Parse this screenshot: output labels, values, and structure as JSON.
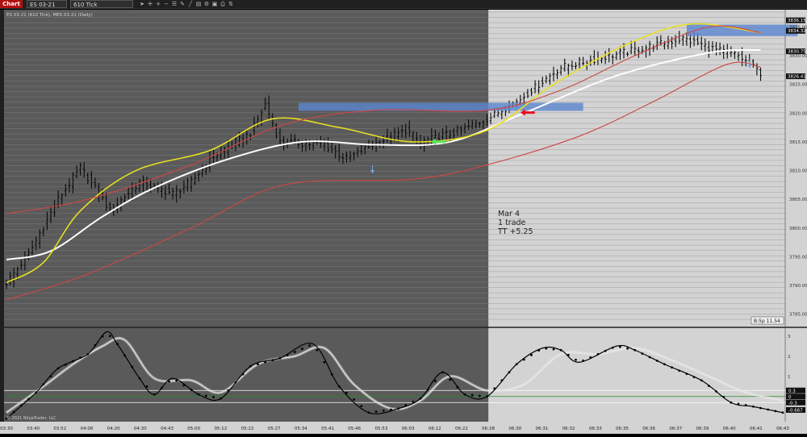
{
  "toolbar": {
    "badge": "Chart",
    "instrument": "ES 03-21",
    "period": "610 Tick",
    "tools": [
      "pointer-icon",
      "crosshair-icon",
      "zoom-in-icon",
      "zoom-out-icon",
      "properties-icon",
      "draw-icon",
      "draw-line-icon",
      "template-icon",
      "strategy-icon",
      "data-box-icon",
      "print-icon",
      "chart-trader-icon"
    ]
  },
  "chart_data": [
    {
      "type": "candlestick",
      "title": "ES 03-21 (610 Tick), MES 03-21 (Daily)",
      "session_split_time": "06:28",
      "ylim": [
        3783,
        3838
      ],
      "yticks": [
        "3785.00",
        "3790.00",
        "3795.00",
        "3800.00",
        "3805.00",
        "3810.00",
        "3815.00",
        "3820.00",
        "3825.00",
        "3830.00",
        "3835.00"
      ],
      "xticks": [
        "03:30",
        "03:40",
        "03:52",
        "04:06",
        "04:20",
        "04:30",
        "04:43",
        "05:00",
        "05:12",
        "05:22",
        "05:27",
        "05:34",
        "05:41",
        "05:46",
        "05:53",
        "06:03",
        "06:12",
        "06:22",
        "06:28",
        "06:30",
        "06:31",
        "06:32",
        "06:33",
        "06:35",
        "06:36",
        "06:37",
        "06:39",
        "06:40",
        "06:41",
        "06:43"
      ],
      "price_path": [
        [
          0,
          3790.5
        ],
        [
          6,
          3795.5
        ],
        [
          14,
          3805
        ],
        [
          20,
          3810.5
        ],
        [
          25,
          3806
        ],
        [
          28,
          3803
        ],
        [
          36,
          3808
        ],
        [
          45,
          3806
        ],
        [
          50,
          3808
        ],
        [
          56,
          3812.5
        ],
        [
          66,
          3816.5
        ],
        [
          70,
          3821.5
        ],
        [
          74,
          3815
        ],
        [
          86,
          3814.5
        ],
        [
          92,
          3812
        ],
        [
          99,
          3814.5
        ],
        [
          108,
          3817
        ],
        [
          112,
          3815
        ],
        [
          123,
          3817
        ],
        [
          130,
          3819
        ],
        [
          138,
          3822
        ],
        [
          150,
          3828
        ],
        [
          170,
          3831
        ],
        [
          183,
          3833
        ],
        [
          192,
          3831
        ],
        [
          198,
          3830
        ],
        [
          204,
          3827
        ]
      ],
      "series": [
        {
          "name": "",
          "color": "#ffffff",
          "values": [
            [
              0,
              3794.5
            ],
            [
              12,
              3796
            ],
            [
              26,
              3802
            ],
            [
              40,
              3807
            ],
            [
              60,
              3812
            ],
            [
              80,
              3815
            ],
            [
              100,
              3814.5
            ],
            [
              120,
              3815
            ],
            [
              140,
              3820
            ],
            [
              165,
              3826.5
            ],
            [
              190,
              3830.5
            ],
            [
              204,
              3831
            ]
          ]
        },
        {
          "name": "",
          "color": "#e8e020",
          "values": [
            [
              0,
              3790.5
            ],
            [
              10,
              3794
            ],
            [
              20,
              3803
            ],
            [
              35,
              3810
            ],
            [
              55,
              3813.5
            ],
            [
              72,
              3819
            ],
            [
              90,
              3817.5
            ],
            [
              110,
              3815
            ],
            [
              130,
              3817
            ],
            [
              148,
              3825
            ],
            [
              168,
              3832
            ],
            [
              185,
              3835.5
            ],
            [
              204,
              3834
            ]
          ]
        },
        {
          "name": "",
          "color": "#d04545",
          "values": [
            [
              0,
              3802.5
            ],
            [
              22,
              3805
            ],
            [
              50,
              3811
            ],
            [
              75,
              3818
            ],
            [
              100,
              3820.5
            ],
            [
              130,
              3820.5
            ],
            [
              150,
              3824
            ],
            [
              170,
              3830
            ],
            [
              190,
              3835
            ],
            [
              204,
              3834
            ]
          ]
        },
        {
          "name": "",
          "color": "#d04545",
          "values": [
            [
              0,
              3787.5
            ],
            [
              22,
              3792
            ],
            [
              50,
              3800
            ],
            [
              75,
              3807.5
            ],
            [
              110,
              3808.5
            ],
            [
              130,
              3811
            ],
            [
              155,
              3816
            ],
            [
              175,
              3822
            ],
            [
              195,
              3828.5
            ],
            [
              204,
              3828
            ]
          ]
        }
      ],
      "zones": [
        {
          "x0": 79,
          "x1": 156,
          "y0": 3820.4,
          "y1": 3821.8,
          "color": "#5b86d0"
        },
        {
          "x0": 184,
          "x1": 214,
          "y0": 3833.4,
          "y1": 3835.4,
          "color": "#5b86d0"
        }
      ],
      "markers": [
        {
          "type": "entry",
          "x": 117,
          "y": 3815,
          "color": "#58e858"
        },
        {
          "type": "exit",
          "x": 139,
          "y": 3820.1,
          "color": "#e81020"
        },
        {
          "type": "swing-down",
          "x": 99,
          "y": 3809.5,
          "color": "#7aaaf0"
        },
        {
          "type": "swing-down",
          "x": 201,
          "y": 3827.8,
          "color": "#7aaaf0"
        }
      ],
      "price_labels": [
        {
          "text": "3836.15",
          "y": 3836.15,
          "color": "#ffffff"
        },
        {
          "text": "3834.32",
          "y": 3834.32,
          "color": "#ffffff"
        },
        {
          "text": "3830.75",
          "y": 3830.75,
          "color": "#ffffff"
        },
        {
          "text": "3826.41",
          "y": 3826.41,
          "color": "#ffffff"
        }
      ],
      "annotation": [
        "Mar 4",
        "1 trade",
        "TT  +5.25"
      ],
      "countdown_label": "B:5p 11.54"
    },
    {
      "type": "line",
      "ylim": [
        -1.25,
        3.35
      ],
      "yticks": [
        "3",
        "2",
        "1"
      ],
      "reference_lines": [
        {
          "y": 0.3,
          "color": "#ffffff"
        },
        {
          "y": 0.0,
          "color": "#209020"
        },
        {
          "y": -0.3,
          "color": "#ffffff"
        }
      ],
      "series": [
        {
          "name": "",
          "color": "#000000",
          "style": "dotted",
          "values": [
            [
              0,
              -1.1
            ],
            [
              8,
              0.2
            ],
            [
              14,
              1.4
            ],
            [
              22,
              2.1
            ],
            [
              27,
              3.2
            ],
            [
              30,
              2.6
            ],
            [
              36,
              0.9
            ],
            [
              40,
              0.1
            ],
            [
              45,
              0.9
            ],
            [
              52,
              0.1
            ],
            [
              58,
              -0.1
            ],
            [
              66,
              1.5
            ],
            [
              74,
              1.9
            ],
            [
              83,
              2.6
            ],
            [
              90,
              0.5
            ],
            [
              98,
              -0.8
            ],
            [
              106,
              -0.6
            ],
            [
              112,
              -0.1
            ],
            [
              118,
              1.2
            ],
            [
              124,
              0.1
            ],
            [
              130,
              0.0
            ],
            [
              138,
              1.6
            ],
            [
              145,
              2.4
            ],
            [
              150,
              2.3
            ],
            [
              155,
              1.7
            ],
            [
              165,
              2.5
            ],
            [
              170,
              2.3
            ],
            [
              178,
              1.6
            ],
            [
              188,
              0.8
            ],
            [
              196,
              -0.3
            ],
            [
              202,
              -0.5
            ],
            [
              210,
              -0.8
            ]
          ]
        },
        {
          "name": "",
          "color": "#e8e8e8",
          "style": "line",
          "values": [
            [
              0,
              -0.8
            ],
            [
              10,
              0.5
            ],
            [
              18,
              1.6
            ],
            [
              26,
              2.5
            ],
            [
              32,
              2.8
            ],
            [
              40,
              0.9
            ],
            [
              50,
              0.8
            ],
            [
              58,
              0.2
            ],
            [
              68,
              1.6
            ],
            [
              78,
              2.0
            ],
            [
              86,
              2.4
            ],
            [
              94,
              0.6
            ],
            [
              104,
              -0.6
            ],
            [
              112,
              -0.2
            ],
            [
              120,
              1.0
            ],
            [
              130,
              0.3
            ],
            [
              140,
              0.6
            ],
            [
              150,
              2.1
            ],
            [
              160,
              2.1
            ],
            [
              170,
              2.4
            ],
            [
              180,
              1.8
            ],
            [
              190,
              1.0
            ],
            [
              200,
              0.2
            ],
            [
              210,
              -0.2
            ]
          ]
        }
      ],
      "end_labels": [
        {
          "text": "0.3",
          "y": 0.3,
          "color": "#ffffff"
        },
        {
          "text": "0",
          "y": 0.0,
          "color": "#ffffff"
        },
        {
          "text": "-0.3",
          "y": -0.3,
          "color": "#ffffff"
        },
        {
          "text": "-0.667",
          "y": -0.667,
          "color": "#ffffff"
        }
      ],
      "copyright": "© 2021 NinjaTrader, LLC"
    }
  ]
}
